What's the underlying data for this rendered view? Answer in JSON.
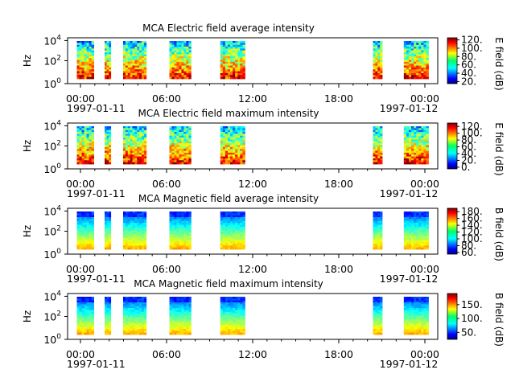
{
  "chart_data": [
    {
      "type": "heatmap",
      "title": "MCA  Electric field average intensity",
      "ylabel": "Hz",
      "colorbar_label": "E field (dB)",
      "colorbar_range": [
        15,
        125
      ],
      "colorbar_ticks": [
        "20.",
        "40.",
        "60.",
        "80.",
        "100.",
        "120."
      ],
      "colorbar_tick_values": [
        20,
        40,
        60,
        80,
        100,
        120
      ],
      "y_ticks": [
        {
          "base": "10",
          "exp": "0"
        },
        {
          "base": "10",
          "exp": "2"
        },
        {
          "base": "10",
          "exp": "4"
        }
      ],
      "x_ticks": [
        "00:00",
        "06:00",
        "12:00",
        "18:00",
        "00:00"
      ],
      "x_start_date": "1997-01-11",
      "x_end_date": "1997-01-12",
      "intervals_hours": [
        [
          0.6,
          1.7
        ],
        [
          2.4,
          2.8
        ],
        [
          3.6,
          5.1
        ],
        [
          6.6,
          8.0
        ],
        [
          9.9,
          11.5
        ],
        [
          19.8,
          20.4
        ],
        [
          21.8,
          23.4
        ]
      ],
      "intensity_range": [
        20,
        120
      ]
    },
    {
      "type": "heatmap",
      "title": "MCA  Electric field maximum intensity",
      "ylabel": "Hz",
      "colorbar_label": "E field (dB)",
      "colorbar_range": [
        -5,
        130
      ],
      "colorbar_ticks": [
        "0.",
        "20.",
        "40.",
        "60.",
        "80.",
        "100.",
        "120."
      ],
      "colorbar_tick_values": [
        0,
        20,
        40,
        60,
        80,
        100,
        120
      ],
      "y_ticks": [
        {
          "base": "10",
          "exp": "0"
        },
        {
          "base": "10",
          "exp": "2"
        },
        {
          "base": "10",
          "exp": "4"
        }
      ],
      "x_ticks": [
        "00:00",
        "06:00",
        "12:00",
        "18:00",
        "00:00"
      ],
      "x_start_date": "1997-01-11",
      "x_end_date": "1997-01-12",
      "intervals_hours": [
        [
          0.6,
          1.7
        ],
        [
          2.4,
          2.8
        ],
        [
          3.6,
          5.1
        ],
        [
          6.6,
          8.0
        ],
        [
          9.9,
          11.5
        ],
        [
          19.8,
          20.4
        ],
        [
          21.8,
          23.4
        ]
      ],
      "intensity_range": [
        0,
        125
      ]
    },
    {
      "type": "heatmap",
      "title": "MCA  Magnetic field average intensity",
      "ylabel": "Hz",
      "colorbar_label": "B field (dB)",
      "colorbar_range": [
        55,
        190
      ],
      "colorbar_ticks": [
        "60.",
        "80.",
        "100.",
        "120.",
        "140.",
        "160.",
        "180."
      ],
      "colorbar_tick_values": [
        60,
        80,
        100,
        120,
        140,
        160,
        180
      ],
      "y_ticks": [
        {
          "base": "10",
          "exp": "0"
        },
        {
          "base": "10",
          "exp": "2"
        },
        {
          "base": "10",
          "exp": "4"
        }
      ],
      "x_ticks": [
        "00:00",
        "06:00",
        "12:00",
        "18:00",
        "00:00"
      ],
      "x_start_date": "1997-01-11",
      "x_end_date": "1997-01-12",
      "intervals_hours": [
        [
          0.6,
          1.7
        ],
        [
          2.4,
          2.8
        ],
        [
          3.6,
          5.1
        ],
        [
          6.6,
          8.0
        ],
        [
          9.9,
          11.5
        ],
        [
          19.8,
          20.4
        ],
        [
          21.8,
          23.4
        ]
      ],
      "intensity_range": [
        60,
        185
      ]
    },
    {
      "type": "heatmap",
      "title": "MCA  Magnetic field maximum intensity",
      "ylabel": "Hz",
      "colorbar_label": "B field (dB)",
      "colorbar_range": [
        25,
        190
      ],
      "colorbar_ticks": [
        "50.",
        "100.",
        "150."
      ],
      "colorbar_tick_values": [
        50,
        100,
        150
      ],
      "y_ticks": [
        {
          "base": "10",
          "exp": "0"
        },
        {
          "base": "10",
          "exp": "2"
        },
        {
          "base": "10",
          "exp": "4"
        }
      ],
      "x_ticks": [
        "00:00",
        "06:00",
        "12:00",
        "18:00",
        "00:00"
      ],
      "x_start_date": "1997-01-11",
      "x_end_date": "1997-01-12",
      "intervals_hours": [
        [
          0.6,
          1.7
        ],
        [
          2.4,
          2.8
        ],
        [
          3.6,
          5.1
        ],
        [
          6.6,
          8.0
        ],
        [
          9.9,
          11.5
        ],
        [
          19.8,
          20.4
        ],
        [
          21.8,
          23.4
        ]
      ],
      "intensity_range": [
        30,
        185
      ]
    }
  ]
}
